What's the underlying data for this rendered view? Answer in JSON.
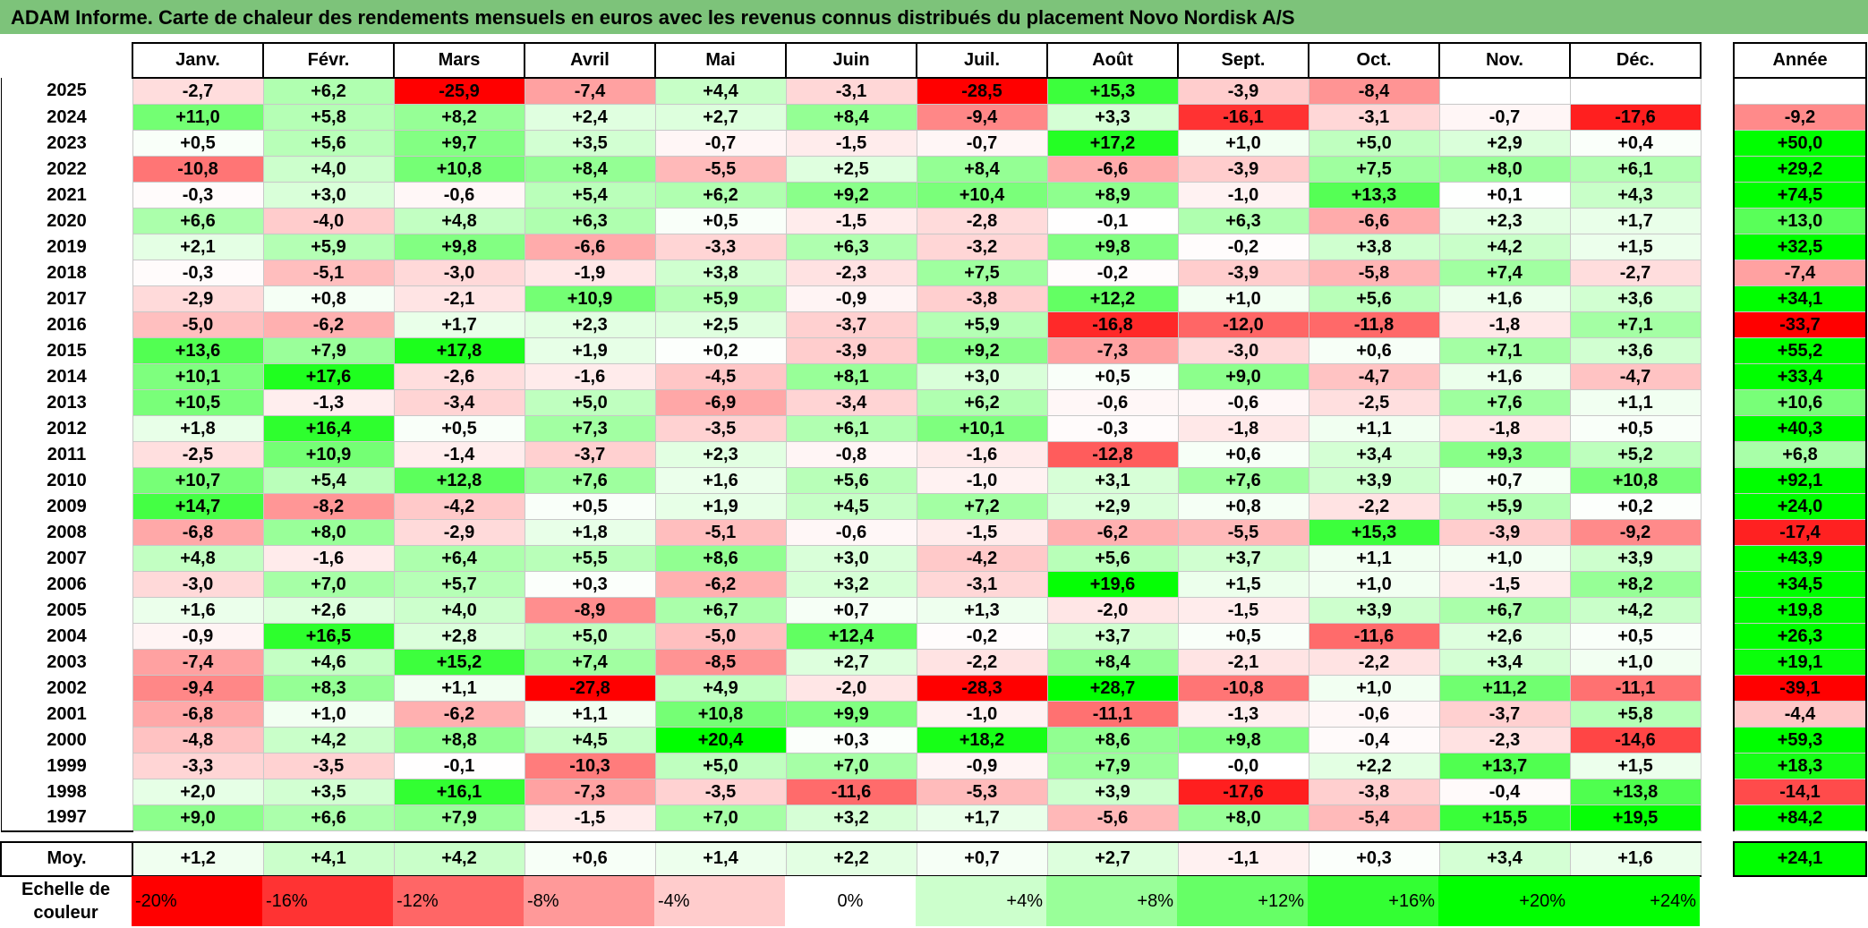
{
  "title": "ADAM Informe. Carte de chaleur des rendements mensuels en euros avec les revenus connus distribués du placement Novo Nordisk A/S",
  "chart_data": {
    "type": "heatmap",
    "title": "ADAM Informe. Carte de chaleur des rendements mensuels en euros avec les revenus connus distribués du placement Novo Nordisk A/S",
    "columns": [
      "Janv.",
      "Févr.",
      "Mars",
      "Avril",
      "Mai",
      "Juin",
      "Juil.",
      "Août",
      "Sept.",
      "Oct.",
      "Nov.",
      "Déc."
    ],
    "annual_header": "Année",
    "rows": [
      {
        "year": "2025",
        "values": [
          "-2,7",
          "+6,2",
          "-25,9",
          "-7,4",
          "+4,4",
          "-3,1",
          "-28,5",
          "+15,3",
          "-3,9",
          "-8,4",
          "",
          ""
        ],
        "annual": ""
      },
      {
        "year": "2024",
        "values": [
          "+11,0",
          "+5,8",
          "+8,2",
          "+2,4",
          "+2,7",
          "+8,4",
          "-9,4",
          "+3,3",
          "-16,1",
          "-3,1",
          "-0,7",
          "-17,6"
        ],
        "annual": "-9,2"
      },
      {
        "year": "2023",
        "values": [
          "+0,5",
          "+5,6",
          "+9,7",
          "+3,5",
          "-0,7",
          "-1,5",
          "-0,7",
          "+17,2",
          "+1,0",
          "+5,0",
          "+2,9",
          "+0,4"
        ],
        "annual": "+50,0"
      },
      {
        "year": "2022",
        "values": [
          "-10,8",
          "+4,0",
          "+10,8",
          "+8,4",
          "-5,5",
          "+2,5",
          "+8,4",
          "-6,6",
          "-3,9",
          "+7,5",
          "+8,0",
          "+6,1"
        ],
        "annual": "+29,2"
      },
      {
        "year": "2021",
        "values": [
          "-0,3",
          "+3,0",
          "-0,6",
          "+5,4",
          "+6,2",
          "+9,2",
          "+10,4",
          "+8,9",
          "-1,0",
          "+13,3",
          "+0,1",
          "+4,3"
        ],
        "annual": "+74,5"
      },
      {
        "year": "2020",
        "values": [
          "+6,6",
          "-4,0",
          "+4,8",
          "+6,3",
          "+0,5",
          "-1,5",
          "-2,8",
          "-0,1",
          "+6,3",
          "-6,6",
          "+2,3",
          "+1,7"
        ],
        "annual": "+13,0"
      },
      {
        "year": "2019",
        "values": [
          "+2,1",
          "+5,9",
          "+9,8",
          "-6,6",
          "-3,3",
          "+6,3",
          "-3,2",
          "+9,8",
          "-0,2",
          "+3,8",
          "+4,2",
          "+1,5"
        ],
        "annual": "+32,5"
      },
      {
        "year": "2018",
        "values": [
          "-0,3",
          "-5,1",
          "-3,0",
          "-1,9",
          "+3,8",
          "-2,3",
          "+7,5",
          "-0,2",
          "-3,9",
          "-5,8",
          "+7,4",
          "-2,7"
        ],
        "annual": "-7,4"
      },
      {
        "year": "2017",
        "values": [
          "-2,9",
          "+0,8",
          "-2,1",
          "+10,9",
          "+5,9",
          "-0,9",
          "-3,8",
          "+12,2",
          "+1,0",
          "+5,6",
          "+1,6",
          "+3,6"
        ],
        "annual": "+34,1"
      },
      {
        "year": "2016",
        "values": [
          "-5,0",
          "-6,2",
          "+1,7",
          "+2,3",
          "+2,5",
          "-3,7",
          "+5,9",
          "-16,8",
          "-12,0",
          "-11,8",
          "-1,8",
          "+7,1"
        ],
        "annual": "-33,7"
      },
      {
        "year": "2015",
        "values": [
          "+13,6",
          "+7,9",
          "+17,8",
          "+1,9",
          "+0,2",
          "-3,9",
          "+9,2",
          "-7,3",
          "-3,0",
          "+0,6",
          "+7,1",
          "+3,6"
        ],
        "annual": "+55,2"
      },
      {
        "year": "2014",
        "values": [
          "+10,1",
          "+17,6",
          "-2,6",
          "-1,6",
          "-4,5",
          "+8,1",
          "+3,0",
          "+0,5",
          "+9,0",
          "-4,7",
          "+1,6",
          "-4,7"
        ],
        "annual": "+33,4"
      },
      {
        "year": "2013",
        "values": [
          "+10,5",
          "-1,3",
          "-3,4",
          "+5,0",
          "-6,9",
          "-3,4",
          "+6,2",
          "-0,6",
          "-0,6",
          "-2,5",
          "+7,6",
          "+1,1"
        ],
        "annual": "+10,6"
      },
      {
        "year": "2012",
        "values": [
          "+1,8",
          "+16,4",
          "+0,5",
          "+7,3",
          "-3,5",
          "+6,1",
          "+10,1",
          "-0,3",
          "-1,8",
          "+1,1",
          "-1,8",
          "+0,5"
        ],
        "annual": "+40,3"
      },
      {
        "year": "2011",
        "values": [
          "-2,5",
          "+10,9",
          "-1,4",
          "-3,7",
          "+2,3",
          "-0,8",
          "-1,6",
          "-12,8",
          "+0,6",
          "+3,4",
          "+9,3",
          "+5,2"
        ],
        "annual": "+6,8"
      },
      {
        "year": "2010",
        "values": [
          "+10,7",
          "+5,4",
          "+12,8",
          "+7,6",
          "+1,6",
          "+5,6",
          "-1,0",
          "+3,1",
          "+7,6",
          "+3,9",
          "+0,7",
          "+10,8"
        ],
        "annual": "+92,1"
      },
      {
        "year": "2009",
        "values": [
          "+14,7",
          "-8,2",
          "-4,2",
          "+0,5",
          "+1,9",
          "+4,5",
          "+7,2",
          "+2,9",
          "+0,8",
          "-2,2",
          "+5,9",
          "+0,2"
        ],
        "annual": "+24,0"
      },
      {
        "year": "2008",
        "values": [
          "-6,8",
          "+8,0",
          "-2,9",
          "+1,8",
          "-5,1",
          "-0,6",
          "-1,5",
          "-6,2",
          "-5,5",
          "+15,3",
          "-3,9",
          "-9,2"
        ],
        "annual": "-17,4"
      },
      {
        "year": "2007",
        "values": [
          "+4,8",
          "-1,6",
          "+6,4",
          "+5,5",
          "+8,6",
          "+3,0",
          "-4,2",
          "+5,6",
          "+3,7",
          "+1,1",
          "+1,0",
          "+3,9"
        ],
        "annual": "+43,9"
      },
      {
        "year": "2006",
        "values": [
          "-3,0",
          "+7,0",
          "+5,7",
          "+0,3",
          "-6,2",
          "+3,2",
          "-3,1",
          "+19,6",
          "+1,5",
          "+1,0",
          "-1,5",
          "+8,2"
        ],
        "annual": "+34,5"
      },
      {
        "year": "2005",
        "values": [
          "+1,6",
          "+2,6",
          "+4,0",
          "-8,9",
          "+6,7",
          "+0,7",
          "+1,3",
          "-2,0",
          "-1,5",
          "+3,9",
          "+6,7",
          "+4,2"
        ],
        "annual": "+19,8"
      },
      {
        "year": "2004",
        "values": [
          "-0,9",
          "+16,5",
          "+2,8",
          "+5,0",
          "-5,0",
          "+12,4",
          "-0,2",
          "+3,7",
          "+0,5",
          "-11,6",
          "+2,6",
          "+0,5"
        ],
        "annual": "+26,3"
      },
      {
        "year": "2003",
        "values": [
          "-7,4",
          "+4,6",
          "+15,2",
          "+7,4",
          "-8,5",
          "+2,7",
          "-2,2",
          "+8,4",
          "-2,1",
          "-2,2",
          "+3,4",
          "+1,0"
        ],
        "annual": "+19,1"
      },
      {
        "year": "2002",
        "values": [
          "-9,4",
          "+8,3",
          "+1,1",
          "-27,8",
          "+4,9",
          "-2,0",
          "-28,3",
          "+28,7",
          "-10,8",
          "+1,0",
          "+11,2",
          "-11,1"
        ],
        "annual": "-39,1"
      },
      {
        "year": "2001",
        "values": [
          "-6,8",
          "+1,0",
          "-6,2",
          "+1,1",
          "+10,8",
          "+9,9",
          "-1,0",
          "-11,1",
          "-1,3",
          "-0,6",
          "-3,7",
          "+5,8"
        ],
        "annual": "-4,4"
      },
      {
        "year": "2000",
        "values": [
          "-4,8",
          "+4,2",
          "+8,8",
          "+4,5",
          "+20,4",
          "+0,3",
          "+18,2",
          "+8,6",
          "+9,8",
          "-0,4",
          "-2,3",
          "-14,6"
        ],
        "annual": "+59,3"
      },
      {
        "year": "1999",
        "values": [
          "-3,3",
          "-3,5",
          "-0,1",
          "-10,3",
          "+5,0",
          "+7,0",
          "-0,9",
          "+7,9",
          "-0,0",
          "+2,2",
          "+13,7",
          "+1,5"
        ],
        "annual": "+18,3"
      },
      {
        "year": "1998",
        "values": [
          "+2,0",
          "+3,5",
          "+16,1",
          "-7,3",
          "-3,5",
          "-11,6",
          "-5,3",
          "+3,9",
          "-17,6",
          "-3,8",
          "-0,4",
          "+13,8"
        ],
        "annual": "-14,1"
      },
      {
        "year": "1997",
        "values": [
          "+9,0",
          "+6,6",
          "+7,9",
          "-1,5",
          "+7,0",
          "+3,2",
          "+1,7",
          "-5,6",
          "+8,0",
          "-5,4",
          "+15,5",
          "+19,5"
        ],
        "annual": "+84,2"
      }
    ],
    "mean_row": {
      "label": "Moy.",
      "values": [
        "+1,2",
        "+4,1",
        "+4,2",
        "+0,6",
        "+1,4",
        "+2,2",
        "+0,7",
        "+2,7",
        "-1,1",
        "+0,3",
        "+3,4",
        "+1,6"
      ],
      "annual": "+24,1"
    },
    "color_scale": {
      "label": "Echelle de couleur",
      "stops": [
        {
          "label": "-20%",
          "value": -20,
          "color": "#ff0000"
        },
        {
          "label": "-16%",
          "value": -16,
          "color": "#ff3333"
        },
        {
          "label": "-12%",
          "value": -12,
          "color": "#ff6666"
        },
        {
          "label": "-8%",
          "value": -8,
          "color": "#ff9999"
        },
        {
          "label": "-4%",
          "value": -4,
          "color": "#ffcccc"
        },
        {
          "label": "0%",
          "value": 0,
          "color": "#ffffff"
        },
        {
          "label": "+4%",
          "value": 4,
          "color": "#ccffcc"
        },
        {
          "label": "+8%",
          "value": 8,
          "color": "#99ff99"
        },
        {
          "label": "+12%",
          "value": 12,
          "color": "#66ff66"
        },
        {
          "label": "+16%",
          "value": 16,
          "color": "#33ff33"
        },
        {
          "label": "+20%",
          "value": 20,
          "color": "#00ff00"
        },
        {
          "label": "+24%",
          "value": 24,
          "color": "#00ff00"
        }
      ]
    }
  }
}
